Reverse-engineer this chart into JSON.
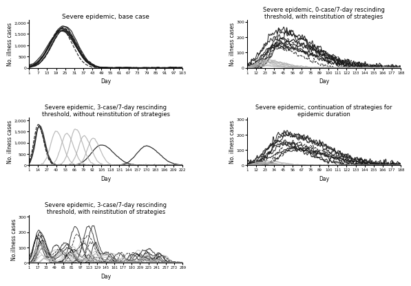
{
  "panels": [
    {
      "title": "Severe epidemic, base case",
      "ylabel": "No. illness cases",
      "xlabel": "Day",
      "xticks": [
        1,
        7,
        13,
        19,
        25,
        31,
        37,
        43,
        49,
        55,
        61,
        67,
        73,
        79,
        85,
        91,
        97,
        103
      ],
      "xlim": [
        1,
        103
      ],
      "ylim": [
        0,
        2100
      ],
      "yticks": [
        0,
        500,
        1000,
        1500,
        2000
      ],
      "yticklabels": [
        "0",
        "500",
        "1,000",
        "1,500",
        "2,000"
      ]
    },
    {
      "title": "Severe epidemic, 3-case/7-day rescinding\nthreshold, without reinstitution of strategies",
      "ylabel": "No. illness cases",
      "xlabel": "Day",
      "xticks": [
        1,
        14,
        27,
        40,
        53,
        66,
        79,
        92,
        105,
        118,
        131,
        144,
        157,
        170,
        183,
        196,
        209,
        222
      ],
      "xlim": [
        1,
        222
      ],
      "ylim": [
        0,
        2100
      ],
      "yticks": [
        0,
        500,
        1000,
        1500,
        2000
      ],
      "yticklabels": [
        "0",
        "500",
        "1,000",
        "1,500",
        "2,000"
      ]
    },
    {
      "title": "Severe epidemic, 3-case/7-day rescinding\nthreshold, with reinstitution of strategies",
      "ylabel": "No.illness cases",
      "xlabel": "Day",
      "xticks": [
        1,
        17,
        33,
        49,
        65,
        81,
        97,
        113,
        129,
        145,
        161,
        177,
        193,
        209,
        225,
        241,
        257,
        273,
        289
      ],
      "xlim": [
        1,
        289
      ],
      "ylim": [
        0,
        310
      ],
      "yticks": [
        0,
        100,
        200,
        300
      ],
      "yticklabels": [
        "0",
        "100",
        "200",
        "300"
      ]
    },
    {
      "title": "Severe epidemic, 0-case/7-day rescinding\nthreshold, with reinstitution of strategies",
      "ylabel": "No. illness cases",
      "xlabel": "Day",
      "xticks": [
        1,
        12,
        23,
        34,
        45,
        56,
        67,
        78,
        89,
        100,
        111,
        122,
        133,
        144,
        155,
        166,
        177,
        188
      ],
      "xlim": [
        1,
        188
      ],
      "ylim": [
        0,
        310
      ],
      "yticks": [
        0,
        100,
        200,
        300
      ],
      "yticklabels": [
        "0",
        "100",
        "200",
        "300"
      ]
    },
    {
      "title": "Severe epidemic, continuation of strategies for\nepidemic duration",
      "ylabel": "No. illness cases",
      "xlabel": "Day",
      "xticks": [
        1,
        12,
        23,
        34,
        45,
        56,
        67,
        78,
        89,
        100,
        111,
        122,
        133,
        144,
        155,
        166,
        177,
        188
      ],
      "xlim": [
        1,
        188
      ],
      "ylim": [
        0,
        310
      ],
      "yticks": [
        0,
        100,
        200,
        300
      ],
      "yticklabels": [
        "0",
        "100",
        "200",
        "300"
      ]
    }
  ],
  "bg_color": "#ffffff",
  "dark_color": "#1a1a1a",
  "light_color": "#b0b0b0"
}
